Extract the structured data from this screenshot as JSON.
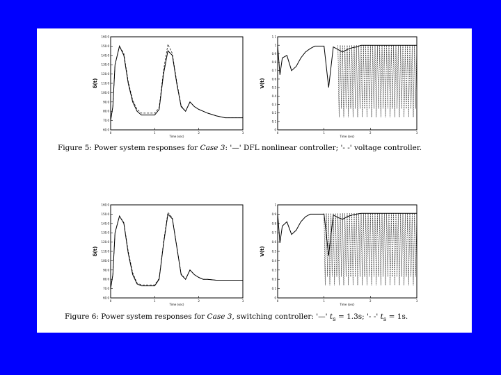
{
  "figure5": {
    "caption_prefix": "Figure 5:  Power system responses for ",
    "caption_case": "Case 3",
    "caption_rest": ": '—' DFL nonlinear controller; '- -' voltage controller."
  },
  "figure6": {
    "caption_prefix": "Figure 6:  Power system responses for ",
    "caption_case": "Case 3",
    "caption_middle": ", switching controller: '—' ",
    "caption_t1": "t",
    "caption_t1_eq": " = 1.3s",
    "caption_sep": "; '- -' ",
    "caption_t2": "t",
    "caption_t2_eq": " = 1s.",
    "sub": "s"
  },
  "chart_data": [
    {
      "type": "line",
      "panel": "fig5-left",
      "ylabel": "δ(t)",
      "xlabel": "Time (sec)",
      "ylim": [
        60,
        160
      ],
      "yticks": [
        "160.0",
        "150.0",
        "140.0",
        "130.0",
        "120.0",
        "110.0",
        "100.0",
        "90.0",
        "80.0",
        "70.0",
        "60.0"
      ],
      "xlim": [
        0,
        3
      ],
      "xticks": [
        "0",
        "1",
        "2",
        "3"
      ],
      "series": [
        {
          "style": "solid",
          "x": [
            0,
            0.05,
            0.1,
            0.2,
            0.3,
            0.4,
            0.5,
            0.6,
            0.7,
            0.8,
            0.9,
            1.0,
            1.1,
            1.2,
            1.3,
            1.4,
            1.5,
            1.6,
            1.7,
            1.8,
            1.9,
            2.0,
            2.1,
            2.2,
            2.4,
            2.6,
            2.8,
            3.0
          ],
          "y": [
            70,
            85,
            130,
            150,
            140,
            110,
            90,
            80,
            76,
            76,
            76,
            76,
            82,
            120,
            145,
            140,
            110,
            85,
            80,
            90,
            85,
            82,
            80,
            78,
            75,
            73,
            73,
            73
          ]
        },
        {
          "style": "dashed",
          "x": [
            0,
            0.05,
            0.1,
            0.2,
            0.3,
            0.4,
            0.5,
            0.6,
            0.7,
            0.8,
            0.9,
            1.0,
            1.1,
            1.2,
            1.3,
            1.4,
            1.5,
            1.6,
            1.7,
            1.8,
            1.9,
            2.0,
            2.1,
            2.2,
            2.4,
            2.6,
            2.8,
            3.0
          ],
          "y": [
            70,
            85,
            130,
            150,
            142,
            112,
            92,
            82,
            78,
            78,
            78,
            78,
            84,
            124,
            152,
            142,
            112,
            86,
            80,
            90,
            85,
            82,
            80,
            78,
            75,
            73,
            73,
            73
          ]
        }
      ]
    },
    {
      "type": "line",
      "panel": "fig5-right",
      "ylabel": "V(t)",
      "xlabel": "Time (sec)",
      "ylim": [
        0,
        1.1
      ],
      "yticks": [
        "1.1",
        "1",
        "0.9",
        "0.8",
        "0.7",
        "0.6",
        "0.5",
        "0.4",
        "0.3",
        "0.2",
        "0.1",
        "0"
      ],
      "xlim": [
        0,
        3
      ],
      "xticks": [
        "0",
        "1",
        "2",
        "3"
      ],
      "series": [
        {
          "style": "solid",
          "x": [
            0,
            0.05,
            0.1,
            0.2,
            0.3,
            0.4,
            0.5,
            0.6,
            0.7,
            0.8,
            0.9,
            1.0,
            1.1,
            1.2,
            1.3,
            1.4,
            1.5,
            1.6,
            1.7,
            1.8,
            2.0,
            2.2,
            2.4,
            2.6,
            2.8,
            3.0
          ],
          "y": [
            1.0,
            0.65,
            0.85,
            0.88,
            0.7,
            0.75,
            0.85,
            0.92,
            0.96,
            0.99,
            0.99,
            0.99,
            0.5,
            0.98,
            0.95,
            0.92,
            0.95,
            0.97,
            0.98,
            1.0,
            1.0,
            1.0,
            1.0,
            1.0,
            1.0,
            1.0
          ]
        },
        {
          "style": "dashed-oscillation",
          "x_start": 1.3,
          "x_end": 3.0,
          "low": 0.1,
          "high": 1.0
        }
      ]
    },
    {
      "type": "line",
      "panel": "fig6-left",
      "ylabel": "δ(t)",
      "xlabel": "Time (sec)",
      "ylim": [
        60,
        160
      ],
      "yticks": [
        "160.0",
        "150.0",
        "140.0",
        "130.0",
        "120.0",
        "110.0",
        "100.0",
        "90.0",
        "80.0",
        "70.0",
        "60.0"
      ],
      "xlim": [
        0,
        3
      ],
      "xticks": [
        "0",
        "1",
        "2",
        "3"
      ],
      "series": [
        {
          "style": "solid",
          "x": [
            0,
            0.05,
            0.1,
            0.2,
            0.3,
            0.4,
            0.5,
            0.6,
            0.7,
            0.8,
            0.9,
            1.0,
            1.1,
            1.2,
            1.3,
            1.4,
            1.5,
            1.6,
            1.7,
            1.8,
            1.9,
            2.0,
            2.1,
            2.2,
            2.4,
            2.6,
            2.8,
            3.0
          ],
          "y": [
            70,
            85,
            130,
            148,
            140,
            108,
            85,
            75,
            73,
            73,
            73,
            73,
            80,
            118,
            150,
            145,
            115,
            85,
            80,
            90,
            85,
            82,
            80,
            80,
            79,
            79,
            79,
            79
          ]
        },
        {
          "style": "dashed",
          "x": [
            0,
            0.05,
            0.1,
            0.2,
            0.3,
            0.4,
            0.5,
            0.6,
            0.7,
            0.8,
            0.9,
            1.0,
            1.1,
            1.2,
            1.3,
            1.4,
            1.5,
            1.6,
            1.7,
            1.8,
            1.9,
            2.0,
            2.1,
            2.2,
            2.4,
            2.6,
            2.8,
            3.0
          ],
          "y": [
            70,
            85,
            130,
            148,
            141,
            110,
            87,
            76,
            74,
            74,
            74,
            74,
            81,
            120,
            152,
            146,
            116,
            86,
            80,
            90,
            85,
            82,
            80,
            80,
            79,
            79,
            79,
            79
          ]
        }
      ]
    },
    {
      "type": "line",
      "panel": "fig6-right",
      "ylabel": "V(t)",
      "xlabel": "Time (sec)",
      "ylim": [
        0,
        1.1
      ],
      "yticks": [
        "1",
        "0.9",
        "0.8",
        "0.7",
        "0.6",
        "0.5",
        "0.4",
        "0.3",
        "0.2",
        "0.1",
        "0"
      ],
      "xlim": [
        0,
        3
      ],
      "xticks": [
        "0",
        "1",
        "2",
        "3"
      ],
      "series": [
        {
          "style": "solid",
          "x": [
            0,
            0.05,
            0.1,
            0.2,
            0.3,
            0.4,
            0.5,
            0.6,
            0.7,
            0.8,
            0.9,
            1.0,
            1.1,
            1.2,
            1.3,
            1.4,
            1.5,
            1.6,
            1.7,
            1.8,
            2.0,
            2.2,
            2.4,
            2.6,
            2.8,
            3.0
          ],
          "y": [
            1.0,
            0.65,
            0.85,
            0.9,
            0.75,
            0.8,
            0.9,
            0.96,
            0.99,
            0.99,
            0.99,
            0.99,
            0.5,
            0.98,
            0.95,
            0.93,
            0.96,
            0.98,
            0.99,
            1.0,
            1.0,
            1.0,
            1.0,
            1.0,
            1.0,
            1.0
          ]
        },
        {
          "style": "dashed-oscillation",
          "x_start": 1.0,
          "x_end": 3.0,
          "low": 0.1,
          "high": 1.0
        }
      ]
    }
  ]
}
